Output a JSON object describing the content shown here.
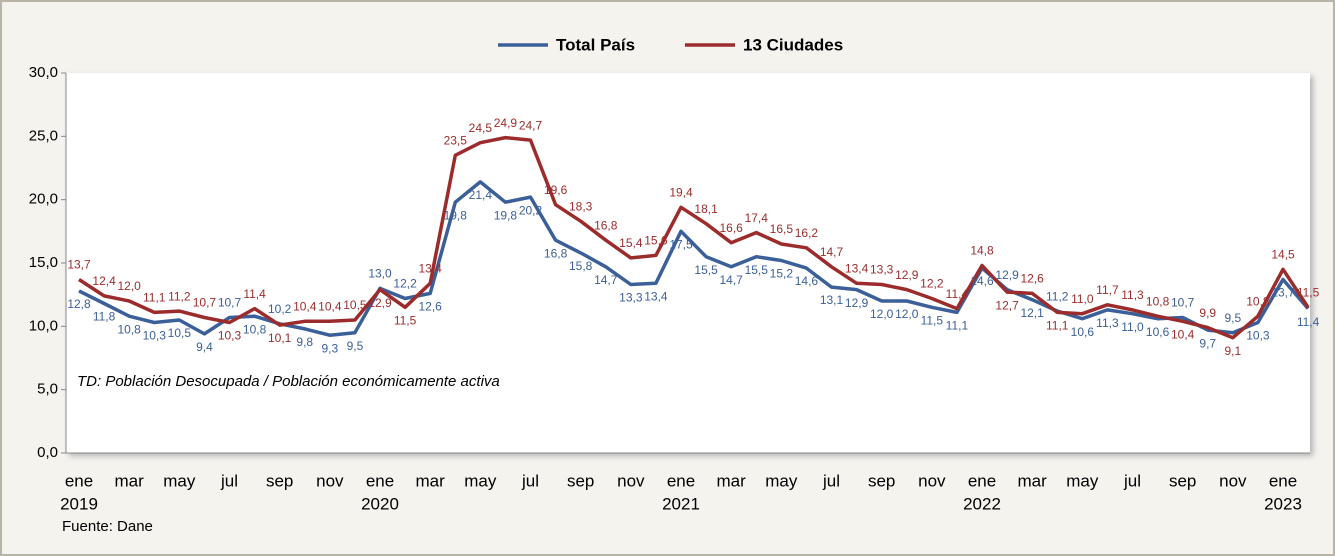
{
  "chart_data": {
    "type": "line",
    "categories": [
      "ene",
      null,
      "mar",
      null,
      "may",
      null,
      "jul",
      null,
      "sep",
      null,
      "nov",
      null,
      "ene",
      null,
      "mar",
      null,
      "may",
      null,
      "jul",
      null,
      "sep",
      null,
      "nov",
      null,
      "ene",
      null,
      "mar",
      null,
      "may",
      null,
      "jul",
      null,
      "sep",
      null,
      "nov",
      null,
      "ene",
      null,
      "mar",
      null,
      "may",
      null,
      "jul",
      null,
      "sep",
      null,
      "nov",
      null,
      "ene",
      null
    ],
    "category_years": [
      "2019",
      null,
      null,
      null,
      null,
      null,
      null,
      null,
      null,
      null,
      null,
      null,
      "2020",
      null,
      null,
      null,
      null,
      null,
      null,
      null,
      null,
      null,
      null,
      null,
      "2021",
      null,
      null,
      null,
      null,
      null,
      null,
      null,
      null,
      null,
      null,
      null,
      "2022",
      null,
      null,
      null,
      null,
      null,
      null,
      null,
      null,
      null,
      null,
      null,
      "2023",
      null
    ],
    "series": [
      {
        "name": "Total País",
        "color": "#3b5f99",
        "values": [
          12.8,
          11.8,
          10.8,
          10.3,
          10.5,
          9.4,
          10.7,
          10.8,
          10.2,
          9.8,
          9.3,
          9.5,
          13.0,
          12.2,
          12.6,
          19.8,
          21.4,
          19.8,
          20.2,
          16.8,
          15.8,
          14.7,
          13.3,
          13.4,
          17.5,
          15.5,
          14.7,
          15.5,
          15.2,
          14.6,
          13.1,
          12.9,
          12.0,
          12.0,
          11.5,
          11.1,
          14.6,
          12.9,
          12.1,
          11.2,
          10.6,
          11.3,
          11.0,
          10.6,
          10.7,
          9.7,
          9.5,
          10.3,
          13.7,
          11.4
        ],
        "value_labels": [
          "12,8",
          "11,8",
          "10,8",
          "10,3",
          "10,5",
          "9,4",
          "10,7",
          "10,8",
          "10,2",
          "9,8",
          "9,3",
          "9,5",
          "13,0",
          "12,2",
          "12,6",
          "19,8",
          "21,4",
          "19,8",
          "20,2",
          "16,8",
          "15,8",
          "14,7",
          "13,3",
          "13,4",
          "17,5",
          "15,5",
          "14,7",
          "15,5",
          "15,2",
          "14,6",
          "13,1",
          "12,9",
          "12,0",
          "12,0",
          "11,5",
          "11,1",
          "14,6",
          "12,9",
          "12,1",
          "11,2",
          "10,6",
          "11,3",
          "11,0",
          "10,6",
          "10,7",
          "9,7",
          "9,5",
          "10,3",
          "13,7",
          "11,4"
        ]
      },
      {
        "name": "13 Ciudades",
        "color": "#9c2c2c",
        "values": [
          13.7,
          12.4,
          12.0,
          11.1,
          11.2,
          10.7,
          10.3,
          11.4,
          10.1,
          10.4,
          10.4,
          10.5,
          12.9,
          11.5,
          13.4,
          23.5,
          24.5,
          24.9,
          24.7,
          19.6,
          18.3,
          16.8,
          15.4,
          15.6,
          19.4,
          18.1,
          16.6,
          17.4,
          16.5,
          16.2,
          14.7,
          13.4,
          13.3,
          12.9,
          12.2,
          11.4,
          14.8,
          12.7,
          12.6,
          11.1,
          11.0,
          11.7,
          11.3,
          10.8,
          10.4,
          9.9,
          9.1,
          10.8,
          14.5,
          11.5
        ],
        "value_labels": [
          "13,7",
          "12,4",
          "12,0",
          "11,1",
          "11,2",
          "10,7",
          "10,3",
          "11,4",
          "10,1",
          "10,4",
          "10,4",
          "10,5",
          "12,9",
          "11,5",
          "13,4",
          "23,5",
          "24,5",
          "24,9",
          "24,7",
          "19,6",
          "18,3",
          "16,8",
          "15,4",
          "15,6",
          "19,4",
          "18,1",
          "16,6",
          "17,4",
          "16,5",
          "16,2",
          "14,7",
          "13,4",
          "13,3",
          "12,9",
          "12,2",
          "11,4",
          "14,8",
          "12,7",
          "12,6",
          "11,1",
          "11,0",
          "11,7",
          "11,3",
          "10,8",
          "10,4",
          "9,9",
          "9,1",
          "10,8",
          "14,5",
          "11,5"
        ]
      }
    ],
    "ylim": [
      0,
      30
    ],
    "yticks": [
      {
        "value": 0,
        "label": "0,0"
      },
      {
        "value": 5,
        "label": "5,0"
      },
      {
        "value": 10,
        "label": "10,0"
      },
      {
        "value": 15,
        "label": "15,0"
      },
      {
        "value": 20,
        "label": "20,0"
      },
      {
        "value": 25,
        "label": "25,0"
      },
      {
        "value": 30,
        "label": "30,0"
      }
    ],
    "grid": false,
    "legend": "top",
    "annotation": "TD: Población  Desocupada / Población económicamente activa",
    "source": "Fuente: Dane"
  }
}
